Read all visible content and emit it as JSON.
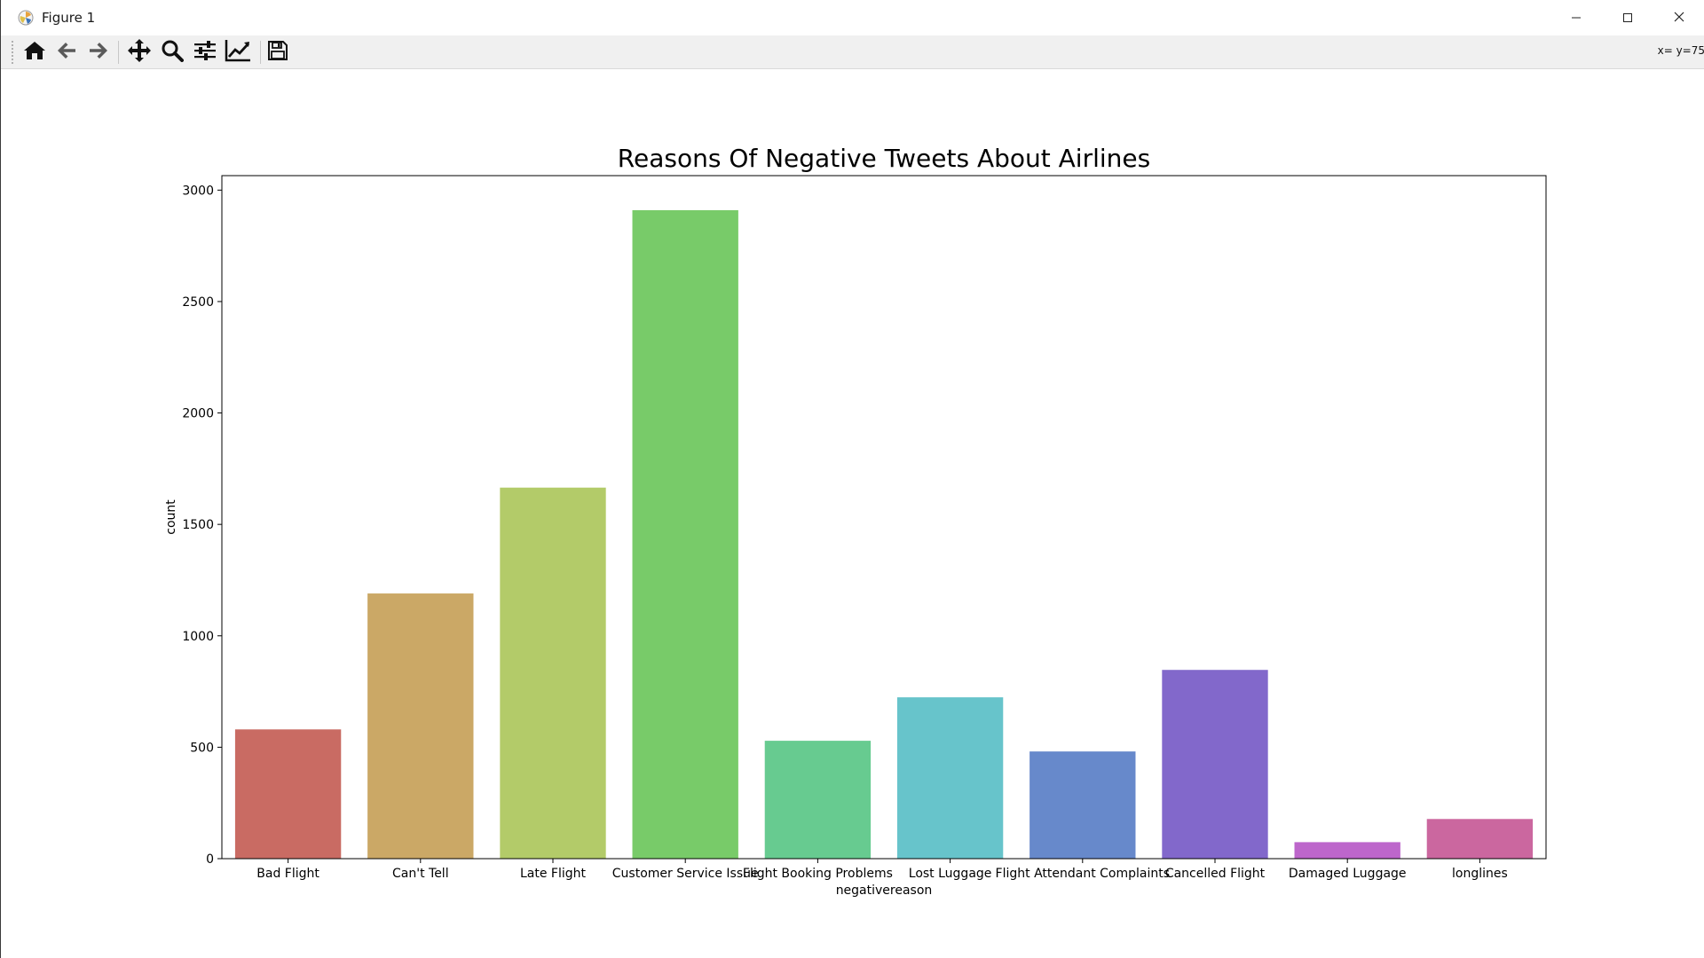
{
  "window": {
    "title": "Figure 1",
    "app_icon": "matplotlib-icon",
    "controls": [
      "minimize-icon",
      "maximize-icon",
      "close-icon"
    ]
  },
  "toolbar": {
    "buttons": [
      "home-icon",
      "back-arrow-icon",
      "forward-arrow-icon",
      "pan-move-icon",
      "zoom-magnifier-icon",
      "subplots-sliders-icon",
      "edit-axes-chart-icon",
      "save-floppy-icon"
    ],
    "coordinates": "x= y=75"
  },
  "colors": {
    "bars": [
      "#c96b63",
      "#cba866",
      "#b3cb69",
      "#78cb69",
      "#67cb90",
      "#67c4cb",
      "#6789cb",
      "#8268cb",
      "#bd66cb",
      "#cb679f"
    ],
    "axis": "#000000",
    "window_bg": "#ffffff",
    "toolbar_bg": "#f0f0f0"
  },
  "chart_data": {
    "type": "bar",
    "title": "Reasons Of Negative Tweets About Airlines",
    "xlabel": "negativereason",
    "ylabel": "count",
    "categories": [
      "Bad Flight",
      "Can't Tell",
      "Late Flight",
      "Customer Service Issue",
      "Flight Booking Problems",
      "Lost Luggage",
      "Flight Attendant Complaints",
      "Cancelled Flight",
      "Damaged Luggage",
      "longlines"
    ],
    "values": [
      580,
      1190,
      1665,
      2910,
      529,
      724,
      481,
      847,
      74,
      178
    ],
    "ylim": [
      0,
      3065
    ],
    "yticks": [
      0,
      500,
      1000,
      1500,
      2000,
      2500,
      3000
    ],
    "grid": false,
    "legend": "none"
  }
}
